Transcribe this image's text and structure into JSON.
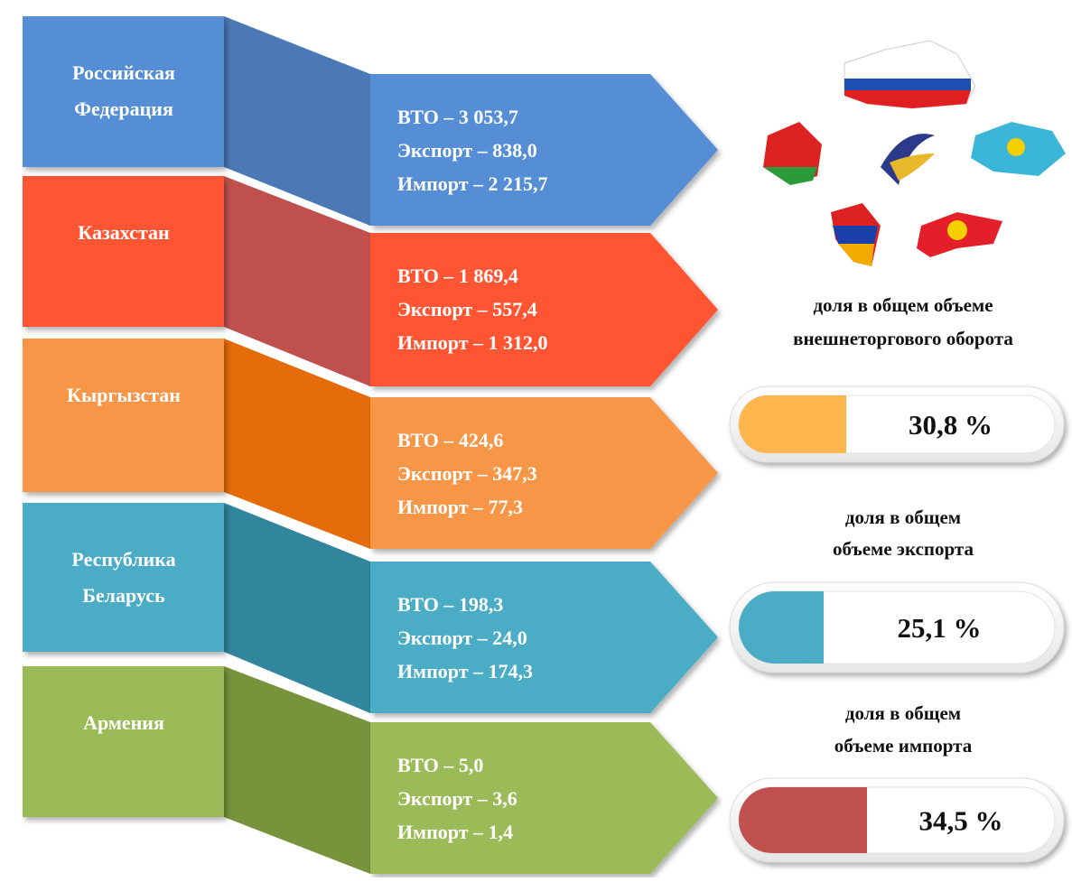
{
  "rows": [
    {
      "country": [
        "Российская",
        "Федерация"
      ],
      "lines": [
        "ВТО – 3 053,7",
        "Экспорт – 838,0",
        "Импорт – 2 215,7"
      ]
    },
    {
      "country": [
        "Казахстан"
      ],
      "lines": [
        "ВТО – 1 869,4",
        "Экспорт – 557,4",
        "Импорт – 1 312,0"
      ]
    },
    {
      "country": [
        "Кыргызстан"
      ],
      "lines": [
        "ВТО – 424,6",
        "Экспорт – 347,3",
        "Импорт – 77,3"
      ]
    },
    {
      "country": [
        "Республика",
        "Беларусь"
      ],
      "lines": [
        "ВТО – 198,3",
        "Экспорт – 24,0",
        "Импорт – 174,3"
      ]
    },
    {
      "country": [
        "Армения"
      ],
      "lines": [
        "ВТО – 5,0",
        "Экспорт – 3,6",
        "Импорт – 1,4"
      ]
    }
  ],
  "shares": [
    {
      "label": [
        "доля в общем объеме",
        "внешнеторгового оборота"
      ],
      "value": "30,8 %"
    },
    {
      "label": [
        "доля в общем",
        "объеме экспорта"
      ],
      "value": "25,1 %"
    },
    {
      "label": [
        "доля в общем",
        "объеме импорта"
      ],
      "value": "34,5 %"
    }
  ]
}
